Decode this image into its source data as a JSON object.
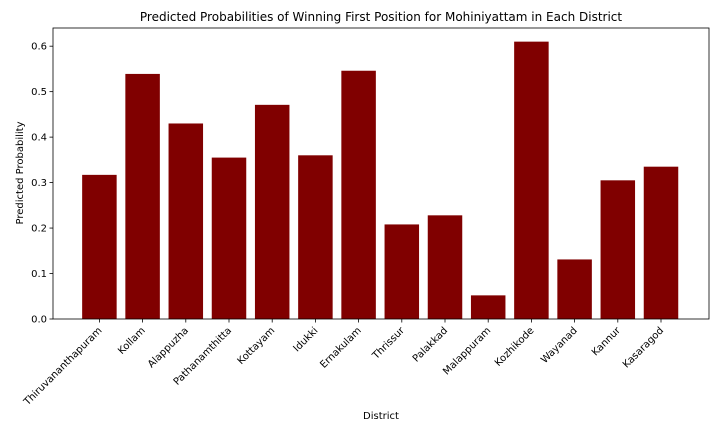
{
  "chart_data": {
    "type": "bar",
    "title": "Predicted Probabilities of Winning First Position for Mohiniyattam in Each District",
    "xlabel": "District",
    "ylabel": "Predicted Probability",
    "categories": [
      "Thiruvananthapuram",
      "Kollam",
      "Alappuzha",
      "Pathanamthitta",
      "Kottayam",
      "Idukki",
      "Ernakulam",
      "Thrissur",
      "Palakkad",
      "Malappuram",
      "Kozhikode",
      "Wayanad",
      "Kannur",
      "Kasaragod"
    ],
    "values": [
      0.317,
      0.539,
      0.43,
      0.355,
      0.471,
      0.36,
      0.546,
      0.208,
      0.228,
      0.052,
      0.61,
      0.131,
      0.305,
      0.335
    ],
    "ylim": [
      0,
      0.64
    ],
    "yticks": [
      "0.0",
      "0.1",
      "0.2",
      "0.3",
      "0.4",
      "0.5",
      "0.6"
    ],
    "bar_color": "#800000",
    "grid": false,
    "legend": "none"
  }
}
